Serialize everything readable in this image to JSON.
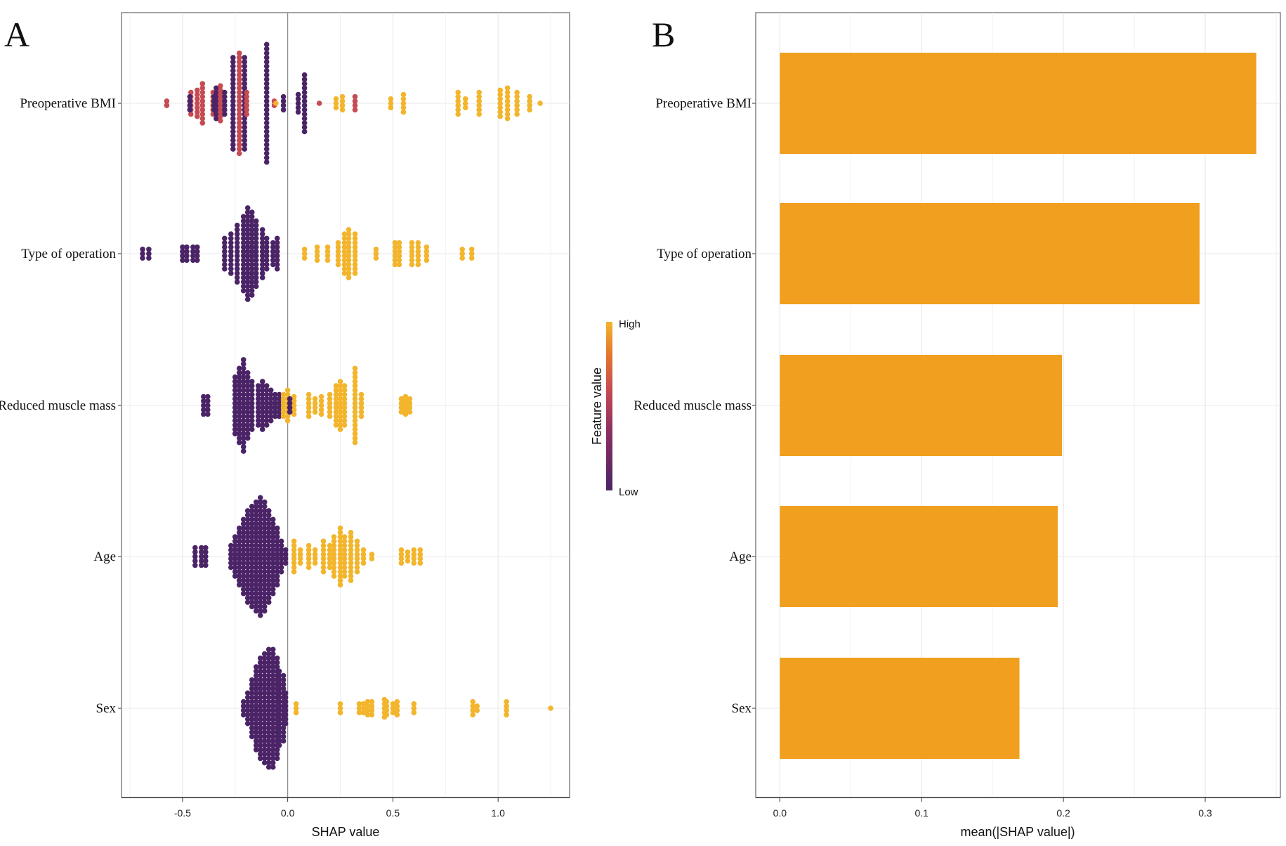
{
  "chart_data": [
    {
      "type": "scatter",
      "subtype": "shap-beeswarm",
      "panel_label": "A",
      "xlabel": "SHAP value",
      "ylabel": "",
      "xlim": [
        -0.79,
        1.34
      ],
      "xticks": [
        -0.5,
        0.0,
        0.5,
        1.0
      ],
      "xtick_labels": [
        "-0.5",
        "0.0",
        "0.5",
        "1.0"
      ],
      "grid": true,
      "point_format": [
        "shap_value",
        "feature_value_0_to_1",
        "approx_count"
      ],
      "legend": {
        "title": "Feature value",
        "high": "High",
        "low": "Low",
        "placement": "right",
        "colors": [
          "#4b2467",
          "#c64b52",
          "#f2b52c"
        ]
      },
      "features": [
        {
          "name": "Preoperative BMI",
          "points": [
            [
              -0.575,
              0.5,
              2
            ],
            [
              -0.46,
              0.5,
              6
            ],
            [
              -0.465,
              0,
              4
            ],
            [
              -0.43,
              0.5,
              7
            ],
            [
              -0.405,
              0.5,
              10
            ],
            [
              -0.355,
              0.5,
              6
            ],
            [
              -0.35,
              0,
              4
            ],
            [
              -0.34,
              0,
              8
            ],
            [
              -0.32,
              0.5,
              9
            ],
            [
              -0.3,
              0,
              6
            ],
            [
              -0.26,
              0,
              22
            ],
            [
              -0.23,
              0.5,
              24
            ],
            [
              -0.205,
              0,
              22
            ],
            [
              -0.195,
              0.5,
              6
            ],
            [
              -0.1,
              0,
              28
            ],
            [
              -0.064,
              0.5,
              2
            ],
            [
              -0.056,
              1,
              1
            ],
            [
              -0.02,
              0,
              4
            ],
            [
              0.05,
              0,
              5
            ],
            [
              0.08,
              0,
              14
            ],
            [
              0.15,
              0.5,
              1
            ],
            [
              0.23,
              1,
              3
            ],
            [
              0.26,
              1,
              4
            ],
            [
              0.32,
              0.5,
              4
            ],
            [
              0.49,
              1,
              3
            ],
            [
              0.55,
              1,
              5
            ],
            [
              0.81,
              1,
              6
            ],
            [
              0.845,
              1,
              3
            ],
            [
              0.91,
              1,
              6
            ],
            [
              1.01,
              1,
              7
            ],
            [
              1.045,
              1,
              8
            ],
            [
              1.09,
              1,
              6
            ],
            [
              1.15,
              1,
              4
            ],
            [
              1.2,
              1,
              1
            ]
          ]
        },
        {
          "name": "Type of operation",
          "points": [
            [
              -0.69,
              0,
              3
            ],
            [
              -0.66,
              0,
              3
            ],
            [
              -0.5,
              0,
              4
            ],
            [
              -0.48,
              0,
              4
            ],
            [
              -0.45,
              0,
              4
            ],
            [
              -0.43,
              0,
              4
            ],
            [
              -0.3,
              0,
              8
            ],
            [
              -0.27,
              0,
              10
            ],
            [
              -0.24,
              0,
              14
            ],
            [
              -0.21,
              0,
              18
            ],
            [
              -0.19,
              0,
              22
            ],
            [
              -0.17,
              0,
              20
            ],
            [
              -0.15,
              0,
              16
            ],
            [
              -0.12,
              0,
              12
            ],
            [
              -0.1,
              0,
              8
            ],
            [
              -0.07,
              0,
              6
            ],
            [
              -0.05,
              0,
              8
            ],
            [
              0.08,
              1,
              3
            ],
            [
              0.14,
              1,
              4
            ],
            [
              0.19,
              1,
              4
            ],
            [
              0.24,
              1,
              6
            ],
            [
              0.27,
              1,
              10
            ],
            [
              0.29,
              1,
              12
            ],
            [
              0.32,
              1,
              10
            ],
            [
              0.42,
              1,
              3
            ],
            [
              0.51,
              1,
              6
            ],
            [
              0.53,
              1,
              6
            ],
            [
              0.59,
              1,
              6
            ],
            [
              0.62,
              1,
              6
            ],
            [
              0.66,
              1,
              4
            ],
            [
              0.83,
              1,
              3
            ],
            [
              0.875,
              1,
              3
            ]
          ]
        },
        {
          "name": "Reduced muscle mass",
          "points": [
            [
              -0.4,
              0,
              5
            ],
            [
              -0.38,
              0,
              5
            ],
            [
              -0.25,
              0,
              14
            ],
            [
              -0.23,
              0,
              18
            ],
            [
              -0.21,
              0,
              22
            ],
            [
              -0.19,
              0,
              16
            ],
            [
              -0.17,
              0,
              12
            ],
            [
              -0.14,
              0,
              10
            ],
            [
              -0.12,
              0,
              12
            ],
            [
              -0.1,
              0,
              10
            ],
            [
              -0.08,
              0,
              8
            ],
            [
              -0.06,
              0,
              6
            ],
            [
              -0.04,
              0,
              6
            ],
            [
              -0.02,
              1,
              6
            ],
            [
              0.0,
              1,
              8
            ],
            [
              0.03,
              1,
              5
            ],
            [
              0.01,
              0,
              4
            ],
            [
              0.1,
              1,
              6
            ],
            [
              0.13,
              1,
              4
            ],
            [
              0.16,
              1,
              5
            ],
            [
              0.2,
              1,
              6
            ],
            [
              0.23,
              1,
              10
            ],
            [
              0.25,
              1,
              12
            ],
            [
              0.27,
              1,
              10
            ],
            [
              0.32,
              1,
              18
            ],
            [
              0.35,
              1,
              6
            ],
            [
              0.54,
              1,
              4
            ],
            [
              0.56,
              1,
              5
            ],
            [
              0.58,
              1,
              4
            ]
          ]
        },
        {
          "name": "Age",
          "points": [
            [
              -0.44,
              0,
              5
            ],
            [
              -0.41,
              0,
              5
            ],
            [
              -0.39,
              0,
              5
            ],
            [
              -0.27,
              0,
              6
            ],
            [
              -0.25,
              0,
              10
            ],
            [
              -0.23,
              0,
              14
            ],
            [
              -0.21,
              0,
              18
            ],
            [
              -0.19,
              0,
              22
            ],
            [
              -0.17,
              0,
              24
            ],
            [
              -0.15,
              0,
              26
            ],
            [
              -0.13,
              0,
              28
            ],
            [
              -0.11,
              0,
              26
            ],
            [
              -0.09,
              0,
              22
            ],
            [
              -0.07,
              0,
              18
            ],
            [
              -0.05,
              0,
              14
            ],
            [
              -0.03,
              0,
              8
            ],
            [
              -0.01,
              0,
              4
            ],
            [
              0.03,
              1,
              8
            ],
            [
              0.06,
              1,
              4
            ],
            [
              0.1,
              1,
              6
            ],
            [
              0.13,
              1,
              4
            ],
            [
              0.17,
              1,
              8
            ],
            [
              0.2,
              1,
              6
            ],
            [
              0.22,
              1,
              10
            ],
            [
              0.25,
              1,
              14
            ],
            [
              0.27,
              1,
              10
            ],
            [
              0.3,
              1,
              12
            ],
            [
              0.33,
              1,
              8
            ],
            [
              0.36,
              1,
              4
            ],
            [
              0.4,
              1,
              2
            ],
            [
              0.54,
              1,
              4
            ],
            [
              0.57,
              1,
              3
            ],
            [
              0.6,
              1,
              4
            ],
            [
              0.63,
              1,
              4
            ]
          ]
        },
        {
          "name": "Sex",
          "points": [
            [
              -0.21,
              0,
              4
            ],
            [
              -0.19,
              0,
              8
            ],
            [
              -0.17,
              0,
              14
            ],
            [
              -0.15,
              0,
              20
            ],
            [
              -0.13,
              0,
              24
            ],
            [
              -0.11,
              0,
              26
            ],
            [
              -0.09,
              0,
              28
            ],
            [
              -0.07,
              0,
              28
            ],
            [
              -0.05,
              0,
              24
            ],
            [
              -0.04,
              0,
              18
            ],
            [
              -0.02,
              0,
              16
            ],
            [
              -0.01,
              0,
              8
            ],
            [
              0.04,
              1,
              3
            ],
            [
              0.25,
              1,
              3
            ],
            [
              0.34,
              1,
              3
            ],
            [
              0.36,
              1,
              3
            ],
            [
              0.38,
              1,
              4
            ],
            [
              0.4,
              1,
              4
            ],
            [
              0.46,
              1,
              5
            ],
            [
              0.47,
              1,
              4
            ],
            [
              0.5,
              1,
              3
            ],
            [
              0.52,
              1,
              4
            ],
            [
              0.6,
              1,
              3
            ],
            [
              0.88,
              1,
              4
            ],
            [
              0.9,
              1,
              2
            ],
            [
              1.04,
              1,
              4
            ],
            [
              1.25,
              1,
              1
            ]
          ]
        }
      ]
    },
    {
      "type": "bar",
      "orientation": "horizontal",
      "panel_label": "B",
      "categories": [
        "Preoperative BMI",
        "Type of operation",
        "Reduced muscle mass",
        "Age",
        "Sex"
      ],
      "values": [
        0.336,
        0.296,
        0.199,
        0.196,
        0.169
      ],
      "xlabel": "mean(|SHAP value|)",
      "ylabel": "",
      "xlim": [
        -0.017,
        0.353
      ],
      "xticks": [
        0.0,
        0.1,
        0.2,
        0.3
      ],
      "xtick_labels": [
        "0.0",
        "0.1",
        "0.2",
        "0.3"
      ],
      "grid": true,
      "bar_color": "#f0a01e"
    }
  ]
}
